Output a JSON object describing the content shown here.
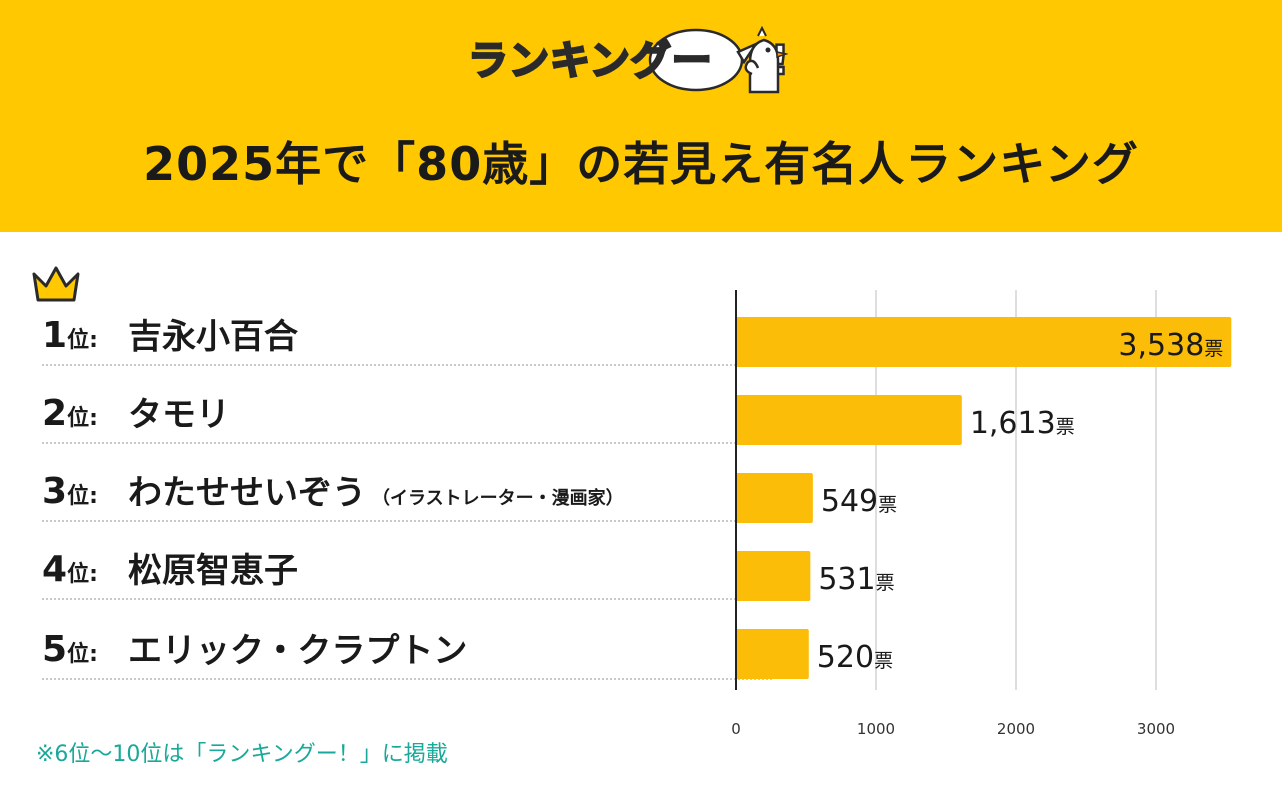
{
  "header": {
    "logo_text": "ランキングー",
    "logo_exclaim": "!",
    "title": "2025年で「80歳」の若見え有名人ランキング",
    "colors": {
      "background": "#ffc800",
      "bar": "#fbbd08",
      "note": "#1aa89a"
    }
  },
  "ranks": [
    {
      "rank": "1",
      "suffix": "位:",
      "name": "吉永小百合",
      "note": ""
    },
    {
      "rank": "2",
      "suffix": "位:",
      "name": "タモリ",
      "note": ""
    },
    {
      "rank": "3",
      "suffix": "位:",
      "name": "わたせせいぞう",
      "note": "（イラストレーター・漫画家）"
    },
    {
      "rank": "4",
      "suffix": "位:",
      "name": "松原智恵子",
      "note": ""
    },
    {
      "rank": "5",
      "suffix": "位:",
      "name": "エリック・クラプトン",
      "note": ""
    }
  ],
  "footnote": "※6位〜10位は「ランキングー！」に掲載",
  "chart_data": {
    "type": "bar",
    "orientation": "horizontal",
    "categories": [
      "吉永小百合",
      "タモリ",
      "わたせせいぞう",
      "松原智恵子",
      "エリック・クラプトン"
    ],
    "values": [
      3538,
      1613,
      549,
      531,
      520
    ],
    "labels": [
      "3,538",
      "1,613",
      "549",
      "531",
      "520"
    ],
    "unit": "票",
    "xlim": [
      0,
      3600
    ],
    "xticks": [
      0,
      1000,
      2000,
      3000
    ],
    "tick_labels": [
      "0",
      "1000",
      "2000",
      "3000"
    ],
    "grid": true,
    "legend": "none"
  }
}
